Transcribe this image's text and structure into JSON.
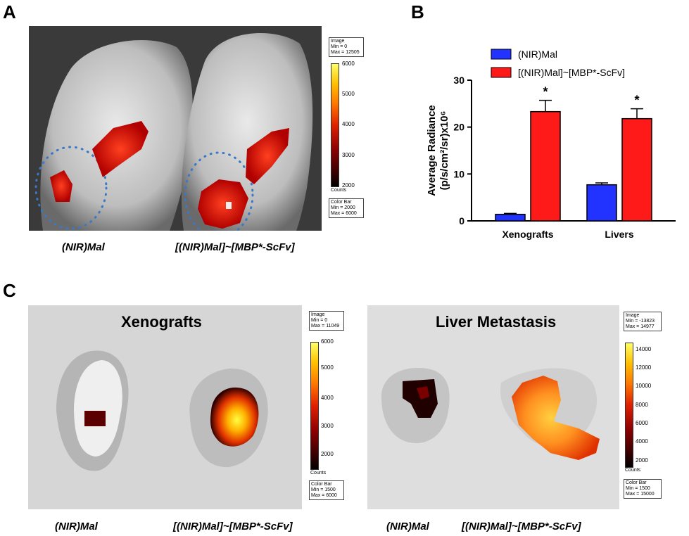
{
  "panels": {
    "a": {
      "letter": "A",
      "captions": [
        "(NIR)Mal",
        "[(NIR)Mal]~[MBP*-ScFv]"
      ],
      "colorbar": {
        "image_label": "Image",
        "image_min": "Min = 0",
        "image_max": "Max = 12505",
        "ticks": [
          "6000",
          "5000",
          "4000",
          "3000",
          "2000"
        ],
        "counts": "Counts",
        "bar_label": "Color Bar",
        "bar_min": "Min = 2000",
        "bar_max": "Max = 6000"
      }
    },
    "b": {
      "letter": "B"
    },
    "c": {
      "letter": "C",
      "left": {
        "title": "Xenografts",
        "captions": [
          "(NIR)Mal",
          "[(NIR)Mal]~[MBP*-ScFv]"
        ],
        "colorbar": {
          "image_label": "Image",
          "image_min": "Min = 0",
          "image_max": "Max = 11049",
          "ticks": [
            "6000",
            "5000",
            "4000",
            "3000",
            "2000"
          ],
          "counts": "Counts",
          "bar_label": "Color Bar",
          "bar_min": "Min = 1500",
          "bar_max": "Max = 6000"
        }
      },
      "right": {
        "title": "Liver Metastasis",
        "captions": [
          "(NIR)Mal",
          "[(NIR)Mal]~[MBP*-ScFv]"
        ],
        "colorbar": {
          "image_label": "Image",
          "image_min": "Min = -13823",
          "image_max": "Max = 14977",
          "ticks": [
            "14000",
            "12000",
            "10000",
            "8000",
            "6000",
            "4000",
            "2000"
          ],
          "counts": "Counts",
          "bar_label": "Color Bar",
          "bar_min": "Min = 1500",
          "bar_max": "Max = 15000"
        }
      }
    }
  },
  "chart_data": {
    "type": "bar",
    "categories": [
      "Xenografts",
      "Livers"
    ],
    "series": [
      {
        "name": "(NIR)Mal",
        "color": "#2233ff",
        "values": [
          1.4,
          7.7
        ],
        "errors": [
          0.2,
          0.4
        ]
      },
      {
        "name": "[(NIR)Mal]~[MBP*-ScFv]",
        "color": "#ff1a1a",
        "values": [
          23.3,
          21.8
        ],
        "errors": [
          2.4,
          2.1
        ]
      }
    ],
    "significance": [
      "*",
      "*"
    ],
    "ylabel_line1": "Average Radiance",
    "ylabel_line2": "(p/s/cm²/sr)x10⁶",
    "ylim": [
      0,
      30
    ],
    "yticks": [
      "0",
      "10",
      "20",
      "30"
    ],
    "legend_position": "top"
  }
}
